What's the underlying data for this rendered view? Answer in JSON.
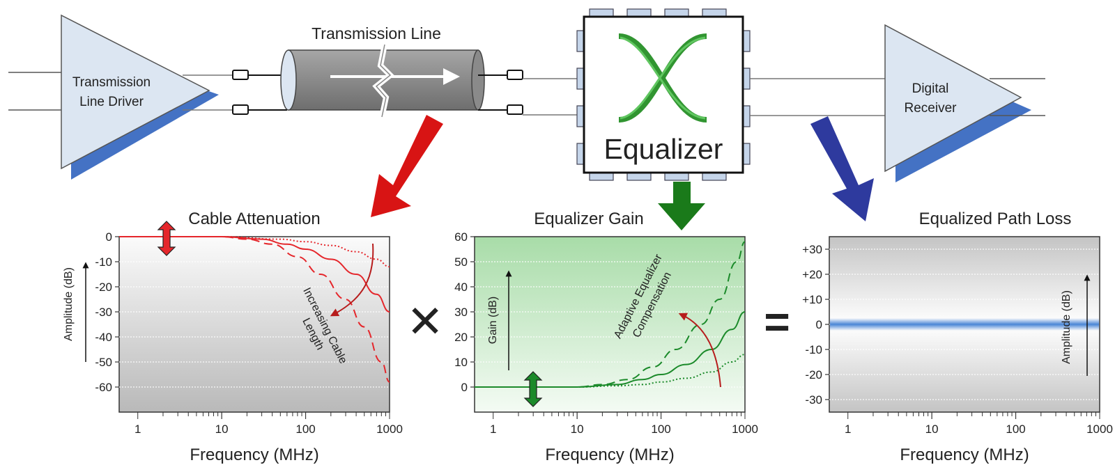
{
  "driver": {
    "line1": "Transmission",
    "line2": "Line Driver"
  },
  "transmission_line": {
    "label": "Transmission Line"
  },
  "equalizer": {
    "label": "Equalizer"
  },
  "receiver": {
    "line1": "Digital",
    "line2": "Receiver"
  },
  "operators": {
    "multiply": "✕",
    "equals": "="
  },
  "colors": {
    "attenuation_red": "#e5262b",
    "gain_green": "#1b8a2a",
    "result_blue": "#4a86d6",
    "arrow_red": "#d81414",
    "arrow_green": "#1a7a1a",
    "arrow_blue": "#2e3a9e"
  },
  "icons": [
    "amplifier-triangle-icon",
    "coax-cable-icon",
    "eye-diagram-icon",
    "ic-chip-icon",
    "connector-icon",
    "double-arrow-icon",
    "curved-arrow-icon"
  ],
  "chart_data": [
    {
      "type": "line",
      "title": "Cable Attenuation",
      "xlabel": "Frequency (MHz)",
      "ylabel": "Amplitude (dB)",
      "xscale": "log",
      "xlim": [
        0.6,
        1000
      ],
      "ylim": [
        -70,
        0
      ],
      "x_ticks": [
        "1",
        "10",
        "100",
        "1000"
      ],
      "y_ticks": [
        "0",
        "-10",
        "-20",
        "-30",
        "-40",
        "-50",
        "-60"
      ],
      "annotation": {
        "line1": "Increasing Cable",
        "line2": "Length"
      },
      "series": [
        {
          "style": "dotted",
          "x": [
            0.6,
            10,
            50,
            100,
            200,
            400,
            700,
            1000
          ],
          "y": [
            0,
            0,
            -1,
            -2,
            -3.5,
            -6,
            -9,
            -12
          ]
        },
        {
          "style": "solid",
          "x": [
            0.6,
            10,
            30,
            60,
            100,
            200,
            400,
            700,
            1000
          ],
          "y": [
            0,
            0,
            -1,
            -3,
            -5,
            -9,
            -15,
            -23,
            -30
          ]
        },
        {
          "style": "dashed",
          "x": [
            0.6,
            10,
            20,
            40,
            80,
            150,
            300,
            500,
            800,
            1000
          ],
          "y": [
            0,
            0,
            -1,
            -3,
            -8,
            -15,
            -25,
            -36,
            -50,
            -58
          ]
        }
      ]
    },
    {
      "type": "line",
      "title": "Equalizer Gain",
      "xlabel": "Frequency (MHz)",
      "ylabel": "Gain (dB)",
      "xscale": "log",
      "xlim": [
        0.6,
        1000
      ],
      "ylim": [
        -10,
        60
      ],
      "x_ticks": [
        "1",
        "10",
        "100",
        "1000"
      ],
      "y_ticks": [
        "60",
        "50",
        "40",
        "30",
        "20",
        "10",
        "0"
      ],
      "annotation": {
        "line1": "Adaptive Equalizer",
        "line2": "Compensation"
      },
      "series": [
        {
          "style": "dotted",
          "x": [
            0.6,
            10,
            30,
            60,
            100,
            200,
            400,
            700,
            1000
          ],
          "y": [
            0,
            0,
            0.5,
            1,
            2,
            3.5,
            6,
            10,
            13
          ]
        },
        {
          "style": "solid",
          "x": [
            0.6,
            10,
            30,
            60,
            100,
            200,
            400,
            700,
            1000
          ],
          "y": [
            0,
            0,
            1,
            3,
            5,
            9,
            15,
            23,
            30
          ]
        },
        {
          "style": "dashed",
          "x": [
            0.6,
            10,
            20,
            40,
            80,
            150,
            300,
            500,
            800,
            1000
          ],
          "y": [
            0,
            0,
            1,
            3,
            8,
            15,
            25,
            35,
            50,
            58
          ]
        }
      ]
    },
    {
      "type": "line",
      "title": "Equalized Path Loss",
      "xlabel": "Frequency (MHz)",
      "ylabel": "Amplitude (dB)",
      "xscale": "log",
      "xlim": [
        0.6,
        1000
      ],
      "ylim": [
        -35,
        35
      ],
      "x_ticks": [
        "1",
        "10",
        "100",
        "1000"
      ],
      "y_ticks": [
        "+30",
        "+20",
        "+10",
        "0",
        "-10",
        "-20",
        "-30"
      ],
      "series": [
        {
          "style": "band",
          "x": [
            0.6,
            1000
          ],
          "y": [
            0,
            0
          ]
        }
      ]
    }
  ]
}
